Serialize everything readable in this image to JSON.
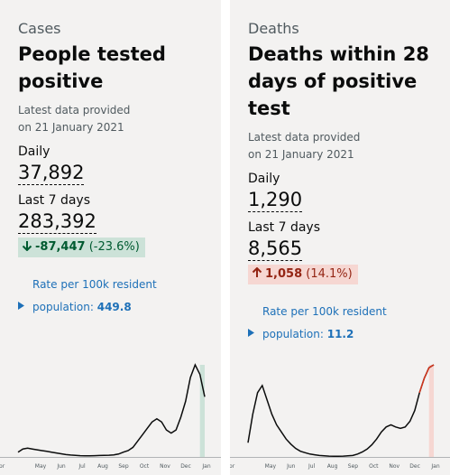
{
  "cards": [
    {
      "category": "Cases",
      "title": "People tested positive",
      "updated": "Latest data provided on 21 January 2021",
      "daily_label": "Daily",
      "daily_value": "37,892",
      "week_label": "Last 7 days",
      "week_value": "283,392",
      "change": "-87,447",
      "change_percent": "(-23.6%)",
      "direction": "down",
      "rate_label": "Rate per 100k resident population:",
      "rate_value": "449.8",
      "chart": {
        "type": "line",
        "months": [
          "Apr",
          "May",
          "Jun",
          "Jul",
          "Aug",
          "Sep",
          "Oct",
          "Nov",
          "Dec",
          "Jan"
        ],
        "values": [
          3000,
          5000,
          5500,
          5000,
          4500,
          4000,
          3500,
          3000,
          2500,
          2000,
          1500,
          1200,
          1000,
          800,
          700,
          700,
          800,
          900,
          1000,
          1100,
          1300,
          1800,
          3000,
          4000,
          6000,
          10000,
          14000,
          18000,
          22000,
          24000,
          22000,
          17000,
          15000,
          17000,
          25000,
          35000,
          50000,
          58000,
          52000,
          37892
        ],
        "color": "#0b0c0c",
        "highlight_color": "#cce2d8"
      }
    },
    {
      "category": "Deaths",
      "title": "Deaths within 28 days of positive test",
      "updated": "Latest data provided on 21 January 2021",
      "daily_label": "Daily",
      "daily_value": "1,290",
      "week_label": "Last 7 days",
      "week_value": "8,565",
      "change": "1,058",
      "change_percent": "(14.1%)",
      "direction": "up",
      "rate_label": "Rate per 100k resident population:",
      "rate_value": "11.2",
      "chart": {
        "type": "line",
        "months": [
          "Apr",
          "May",
          "Jun",
          "Jul",
          "Aug",
          "Sep",
          "Oct",
          "Nov",
          "Dec",
          "Jan"
        ],
        "values": [
          200,
          600,
          900,
          1000,
          800,
          600,
          450,
          350,
          250,
          180,
          120,
          80,
          60,
          40,
          30,
          20,
          15,
          12,
          10,
          10,
          12,
          15,
          20,
          40,
          70,
          110,
          170,
          250,
          350,
          420,
          450,
          420,
          400,
          420,
          500,
          650,
          900,
          1100,
          1250,
          1290
        ],
        "color": "#0b0c0c",
        "highlight_color": "#f6d7d2"
      }
    }
  ]
}
